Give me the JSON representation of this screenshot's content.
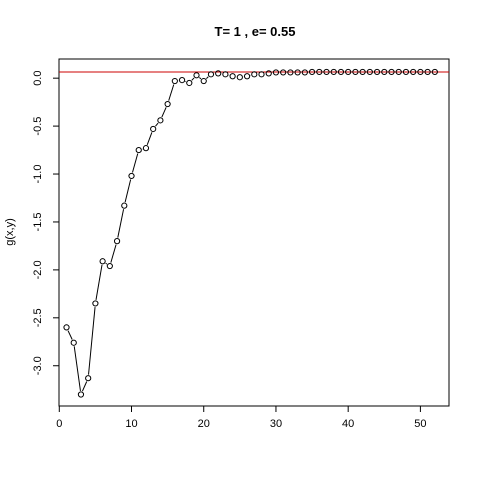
{
  "chart_data": {
    "type": "line",
    "title": "T=  1 , e=  0.55",
    "xlabel": "",
    "ylabel": "g(x,y)",
    "xlim": [
      -0.04,
      53.96
    ],
    "ylim": [
      -3.42,
      0.2
    ],
    "xticks": [
      0,
      10,
      20,
      30,
      40,
      50
    ],
    "xtick_labels": [
      "0",
      "10",
      "20",
      "30",
      "40",
      "50"
    ],
    "yticks": [
      0.0,
      -0.5,
      -1.0,
      -1.5,
      -2.0,
      -2.5,
      -3.0
    ],
    "ytick_labels": [
      "0.0",
      "-0.5",
      "-1.0",
      "-1.5",
      "-2.0",
      "-2.5",
      "-3.0"
    ],
    "grid": false,
    "marker": "open-circle",
    "reference_line": {
      "y": 0.065,
      "color": "#cc0000"
    },
    "x": [
      1,
      2,
      3,
      4,
      5,
      6,
      7,
      8,
      9,
      10,
      11,
      12,
      13,
      14,
      15,
      16,
      17,
      18,
      19,
      20,
      21,
      22,
      23,
      24,
      25,
      26,
      27,
      28,
      29,
      30,
      31,
      32,
      33,
      34,
      35,
      36,
      37,
      38,
      39,
      40,
      41,
      42,
      43,
      44,
      45,
      46,
      47,
      48,
      49,
      50,
      51,
      52
    ],
    "y": [
      -2.6,
      -2.76,
      -3.3,
      -3.13,
      -2.35,
      -1.91,
      -1.96,
      -1.7,
      -1.33,
      -1.02,
      -0.75,
      -0.73,
      -0.53,
      -0.44,
      -0.27,
      -0.03,
      -0.02,
      -0.05,
      0.03,
      -0.03,
      0.04,
      0.05,
      0.04,
      0.02,
      0.01,
      0.02,
      0.04,
      0.04,
      0.05,
      0.06,
      0.06,
      0.06,
      0.06,
      0.06,
      0.065,
      0.065,
      0.065,
      0.065,
      0.065,
      0.065,
      0.065,
      0.065,
      0.065,
      0.065,
      0.065,
      0.065,
      0.065,
      0.065,
      0.065,
      0.065,
      0.065,
      0.065
    ]
  }
}
